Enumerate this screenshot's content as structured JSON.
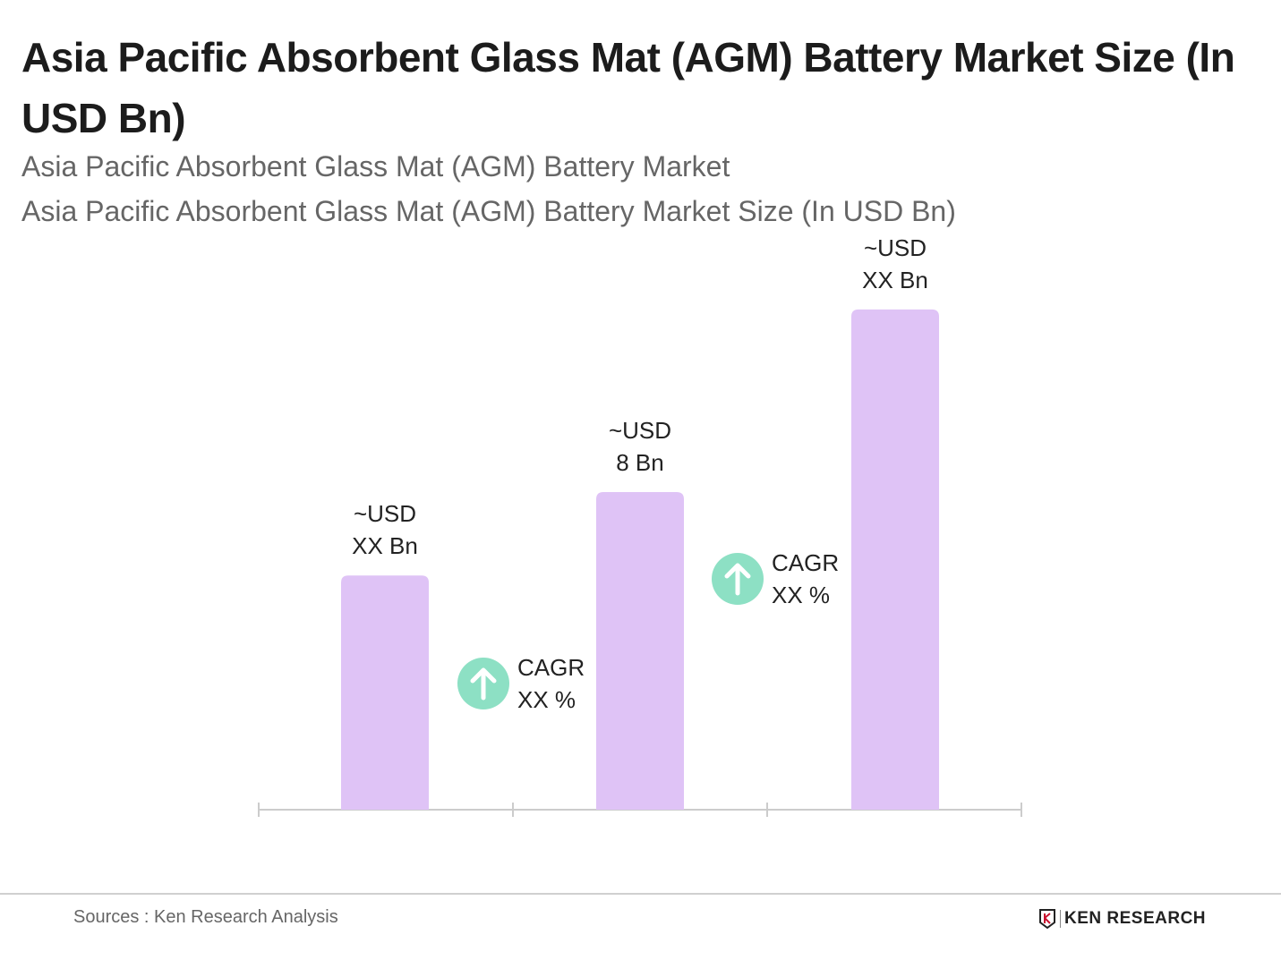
{
  "title": "Asia Pacific Absorbent Glass Mat (AGM) Battery Market Size (In USD Bn)",
  "subtitle1": "Asia Pacific Absorbent Glass Mat (AGM) Battery Market",
  "subtitle2": "Asia Pacific Absorbent Glass Mat (AGM) Battery Market Size (In USD Bn)",
  "chart_data": {
    "type": "bar",
    "title": "Asia Pacific Absorbent Glass Mat (AGM) Battery Market Size (In USD Bn)",
    "categories": [
      "",
      "",
      ""
    ],
    "values": [
      5.9,
      8,
      12.6
    ],
    "data_labels": [
      [
        "~USD",
        "XX Bn"
      ],
      [
        "~USD",
        "8 Bn"
      ],
      [
        "~USD",
        "XX Bn"
      ]
    ],
    "annotations": [
      {
        "between": [
          0,
          1
        ],
        "lines": [
          "CAGR",
          "XX %"
        ],
        "icon": "arrow-up-circle-icon"
      },
      {
        "between": [
          1,
          2
        ],
        "lines": [
          "CAGR",
          "XX %"
        ],
        "icon": "arrow-up-circle-icon"
      }
    ],
    "grid": false,
    "bar_color": "#dfc3f6",
    "icon_color": "#8de0c4",
    "axis_color": "#cccccc"
  },
  "footer": {
    "source": "Sources : Ken Research Analysis",
    "logo_text": "KEN RESEARCH"
  }
}
